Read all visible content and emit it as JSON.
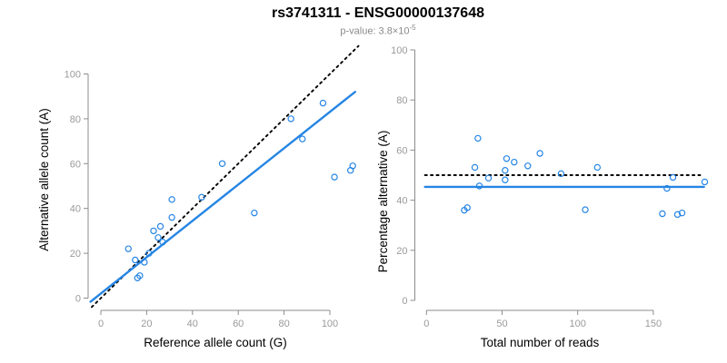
{
  "title": "rs3741311 - ENSG00000137648",
  "subtitle": {
    "prefix": "p-value: 3.8×10",
    "exponent": "-5"
  },
  "colors": {
    "accent_blue": "#2585E4",
    "dotted_black": "#000000",
    "axis_gray": "#8c8c8c",
    "tick_label_gray": "#9a9a9a",
    "text_black": "#000000",
    "subtitle_gray": "#8a8a8a"
  },
  "chart_data": [
    {
      "type": "scatter",
      "xlabel": "Reference allele count (G)",
      "ylabel": "Alternative allele count (A)",
      "xlim": [
        0,
        112
      ],
      "ylim": [
        0,
        112
      ],
      "xticks": [
        0,
        20,
        40,
        60,
        80,
        100
      ],
      "yticks": [
        0,
        20,
        40,
        60,
        80,
        100
      ],
      "grid": false,
      "points": [
        [
          12,
          22
        ],
        [
          15,
          17
        ],
        [
          16,
          9
        ],
        [
          17,
          10
        ],
        [
          19,
          16
        ],
        [
          21,
          20
        ],
        [
          23,
          30
        ],
        [
          25,
          27
        ],
        [
          26,
          32
        ],
        [
          27,
          25
        ],
        [
          31,
          36
        ],
        [
          31,
          44
        ],
        [
          44,
          45
        ],
        [
          53,
          60
        ],
        [
          67,
          38
        ],
        [
          83,
          80
        ],
        [
          88,
          71
        ],
        [
          97,
          87
        ],
        [
          102,
          54
        ],
        [
          109,
          57
        ],
        [
          110,
          59
        ]
      ],
      "lines": [
        {
          "name": "identity-line",
          "style": "dotted",
          "color": "#000000",
          "x": [
            -4,
            112.5
          ],
          "y": [
            -4,
            112.5
          ]
        },
        {
          "name": "fit-line",
          "style": "solid",
          "color": "#2585E4",
          "x": [
            -4.5,
            111
          ],
          "y": [
            -1.6,
            92.0
          ]
        }
      ]
    },
    {
      "type": "scatter",
      "xlabel": "Total number of reads",
      "ylabel": "Percentage alternative (A)",
      "xlim": [
        0,
        185
      ],
      "ylim": [
        0,
        100
      ],
      "xticks": [
        0,
        50,
        100,
        150
      ],
      "yticks": [
        0,
        20,
        40,
        60,
        80,
        100
      ],
      "grid": false,
      "points": [
        [
          34,
          64.7
        ],
        [
          32,
          53.1
        ],
        [
          25,
          36.0
        ],
        [
          27,
          37.0
        ],
        [
          35,
          45.7
        ],
        [
          41,
          48.8
        ],
        [
          53,
          56.6
        ],
        [
          52,
          51.9
        ],
        [
          58,
          55.2
        ],
        [
          52,
          48.1
        ],
        [
          67,
          53.7
        ],
        [
          75,
          58.7
        ],
        [
          89,
          50.6
        ],
        [
          113,
          53.1
        ],
        [
          105,
          36.2
        ],
        [
          163,
          49.1
        ],
        [
          159,
          44.7
        ],
        [
          184,
          47.3
        ],
        [
          156,
          34.6
        ],
        [
          166,
          34.3
        ],
        [
          169,
          34.9
        ]
      ],
      "lines": [
        {
          "name": "null-50pct-line",
          "style": "dotted",
          "color": "#000000",
          "x": [
            -1,
            181
          ],
          "y": [
            50,
            50
          ]
        },
        {
          "name": "fit-pct-line",
          "style": "solid",
          "color": "#2585E4",
          "x": [
            -1,
            183.5
          ],
          "y": [
            45.3,
            45.3
          ]
        }
      ]
    }
  ]
}
